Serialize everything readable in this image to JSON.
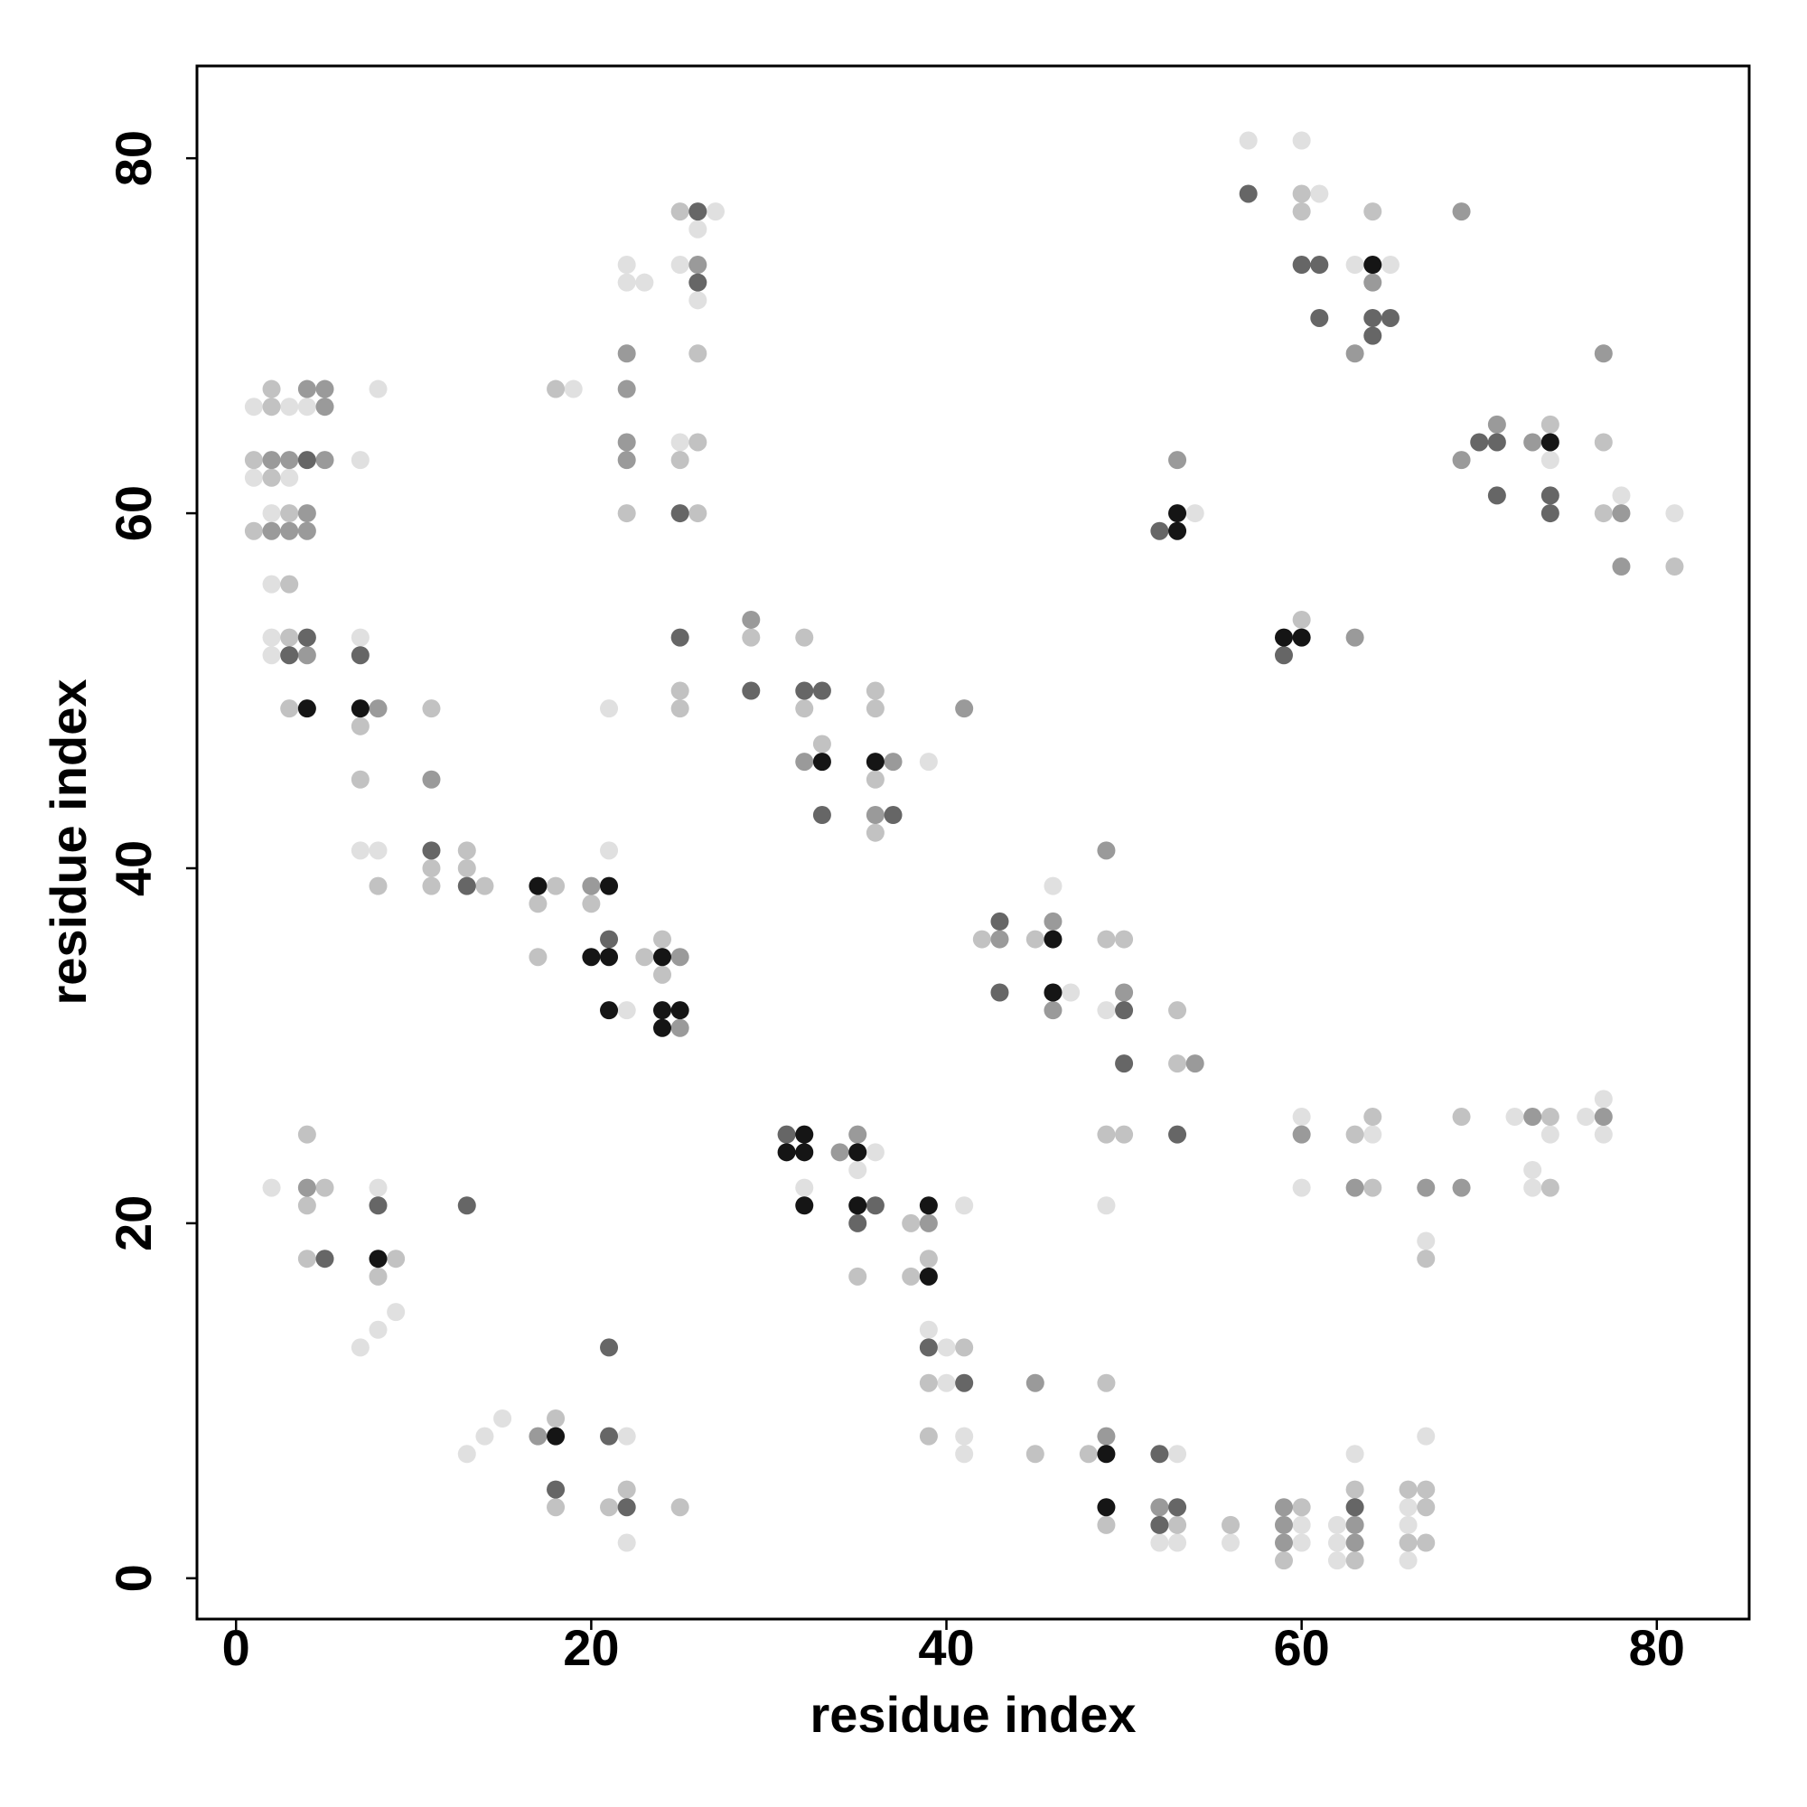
{
  "chart_data": {
    "type": "scatter",
    "x_label": "residue index",
    "y_label": "residue index",
    "xlim": [
      -2.2,
      85.2
    ],
    "ylim": [
      -2.3,
      85.2
    ],
    "xticks": [
      0,
      20,
      40,
      60,
      80
    ],
    "yticks": [
      0,
      20,
      40,
      60,
      80
    ],
    "grid": false,
    "series": [
      {
        "color": "#e0e0e0",
        "x": [
          57,
          60,
          61,
          27,
          26,
          25,
          26,
          22,
          22,
          23,
          19,
          25,
          63,
          65,
          1,
          3,
          4,
          7,
          8,
          1,
          3,
          2,
          2,
          2,
          2,
          7,
          7,
          8,
          21,
          22,
          21,
          39,
          54,
          74,
          78,
          81,
          46,
          47,
          49,
          49,
          60,
          64,
          67,
          72,
          74,
          73,
          73,
          76,
          77,
          77,
          35,
          32,
          41,
          39,
          40,
          40,
          41,
          41,
          53,
          52,
          53,
          56,
          60,
          60,
          62,
          62,
          62,
          63,
          66,
          66,
          66,
          67,
          2,
          8,
          9,
          8,
          7,
          13,
          14,
          15,
          22,
          22,
          36,
          60
        ],
        "values": [
          81,
          81,
          78,
          77,
          76,
          74,
          72,
          74,
          73,
          73,
          67,
          64,
          74,
          74,
          66,
          66,
          66,
          63,
          67,
          62,
          62,
          60,
          56,
          53,
          52,
          53,
          41,
          41,
          41,
          32,
          49,
          46,
          60,
          63,
          61,
          60,
          39,
          33,
          32,
          21,
          22,
          25,
          19,
          26,
          25,
          23,
          22,
          26,
          27,
          25,
          23,
          22,
          21,
          14,
          13,
          11,
          8,
          7,
          7,
          2,
          2,
          2,
          3,
          2,
          3,
          2,
          1,
          7,
          4,
          3,
          1,
          8,
          22,
          22,
          15,
          14,
          13,
          7,
          8,
          9,
          8,
          2,
          24,
          26
        ]
      },
      {
        "color": "#c2c2c2",
        "x": [
          60,
          60,
          64,
          25,
          26,
          18,
          25,
          22,
          26,
          26,
          2,
          2,
          1,
          2,
          3,
          1,
          3,
          3,
          3,
          7,
          11,
          7,
          13,
          11,
          13,
          8,
          11,
          14,
          18,
          17,
          20,
          17,
          23,
          24,
          24,
          25,
          25,
          29,
          32,
          32,
          33,
          36,
          36,
          36,
          36,
          60,
          74,
          77,
          77,
          81,
          42,
          45,
          49,
          50,
          53,
          53,
          49,
          50,
          63,
          64,
          64,
          69,
          67,
          74,
          74,
          35,
          38,
          39,
          38,
          41,
          39,
          39,
          45,
          48,
          49,
          49,
          53,
          56,
          60,
          59,
          63,
          66,
          67,
          67,
          66,
          67,
          63,
          4,
          5,
          4,
          4,
          9,
          8,
          18,
          18,
          21,
          22,
          25
        ],
        "values": [
          78,
          77,
          77,
          77,
          69,
          67,
          63,
          60,
          60,
          64,
          67,
          66,
          63,
          62,
          60,
          59,
          56,
          53,
          49,
          48,
          49,
          45,
          41,
          40,
          40,
          39,
          39,
          39,
          39,
          38,
          38,
          35,
          35,
          36,
          34,
          50,
          49,
          53,
          53,
          49,
          47,
          50,
          49,
          45,
          42,
          54,
          65,
          64,
          60,
          57,
          36,
          36,
          36,
          36,
          32,
          29,
          25,
          25,
          25,
          26,
          22,
          26,
          18,
          26,
          22,
          17,
          20,
          18,
          17,
          13,
          11,
          8,
          7,
          7,
          11,
          3,
          3,
          3,
          4,
          1,
          1,
          5,
          5,
          4,
          2,
          2,
          5,
          25,
          22,
          21,
          18,
          18,
          17,
          9,
          4,
          4,
          5,
          4
        ]
      },
      {
        "color": "#9a9a9a",
        "x": [
          69,
          64,
          63,
          26,
          22,
          22,
          22,
          22,
          4,
          5,
          5,
          2,
          3,
          5,
          4,
          2,
          3,
          4,
          4,
          8,
          11,
          20,
          25,
          25,
          29,
          32,
          36,
          37,
          41,
          53,
          63,
          69,
          71,
          73,
          77,
          78,
          78,
          43,
          46,
          46,
          49,
          50,
          54,
          60,
          63,
          67,
          69,
          73,
          77,
          34,
          35,
          39,
          45,
          49,
          52,
          59,
          59,
          59,
          63,
          63,
          4,
          17
        ],
        "values": [
          77,
          73,
          69,
          74,
          69,
          67,
          64,
          63,
          67,
          67,
          66,
          63,
          63,
          63,
          60,
          59,
          59,
          59,
          52,
          49,
          45,
          39,
          35,
          31,
          54,
          46,
          43,
          46,
          49,
          63,
          53,
          63,
          65,
          64,
          69,
          60,
          57,
          36,
          37,
          32,
          41,
          33,
          29,
          25,
          22,
          22,
          22,
          26,
          26,
          24,
          25,
          20,
          11,
          8,
          4,
          4,
          3,
          2,
          3,
          2,
          22,
          8
        ]
      },
      {
        "color": "#666666",
        "x": [
          57,
          60,
          61,
          61,
          64,
          65,
          64,
          26,
          26,
          25,
          4,
          4,
          3,
          7,
          11,
          13,
          21,
          25,
          29,
          32,
          33,
          33,
          37,
          52,
          59,
          70,
          71,
          71,
          74,
          74,
          43,
          43,
          50,
          50,
          53,
          31,
          36,
          35,
          39,
          41,
          52,
          53,
          52,
          63,
          8,
          5,
          13,
          21,
          21,
          18,
          22
        ],
        "values": [
          78,
          74,
          74,
          71,
          71,
          71,
          70,
          77,
          73,
          60,
          63,
          53,
          52,
          52,
          41,
          39,
          36,
          53,
          50,
          50,
          50,
          43,
          43,
          59,
          52,
          64,
          64,
          61,
          61,
          60,
          37,
          33,
          32,
          29,
          25,
          25,
          21,
          20,
          13,
          11,
          7,
          4,
          3,
          4,
          21,
          18,
          21,
          13,
          8,
          5,
          4
        ]
      },
      {
        "color": "#151515",
        "x": [
          64,
          4,
          7,
          17,
          21,
          20,
          21,
          24,
          21,
          24,
          25,
          24,
          33,
          36,
          53,
          53,
          59,
          60,
          74,
          46,
          46,
          32,
          31,
          32,
          35,
          32,
          35,
          39,
          39,
          49,
          49,
          8,
          18
        ],
        "values": [
          74,
          49,
          49,
          39,
          39,
          35,
          35,
          35,
          32,
          32,
          32,
          31,
          46,
          46,
          60,
          59,
          53,
          53,
          64,
          36,
          33,
          25,
          24,
          24,
          24,
          21,
          21,
          21,
          17,
          7,
          4,
          18,
          8
        ]
      }
    ]
  }
}
